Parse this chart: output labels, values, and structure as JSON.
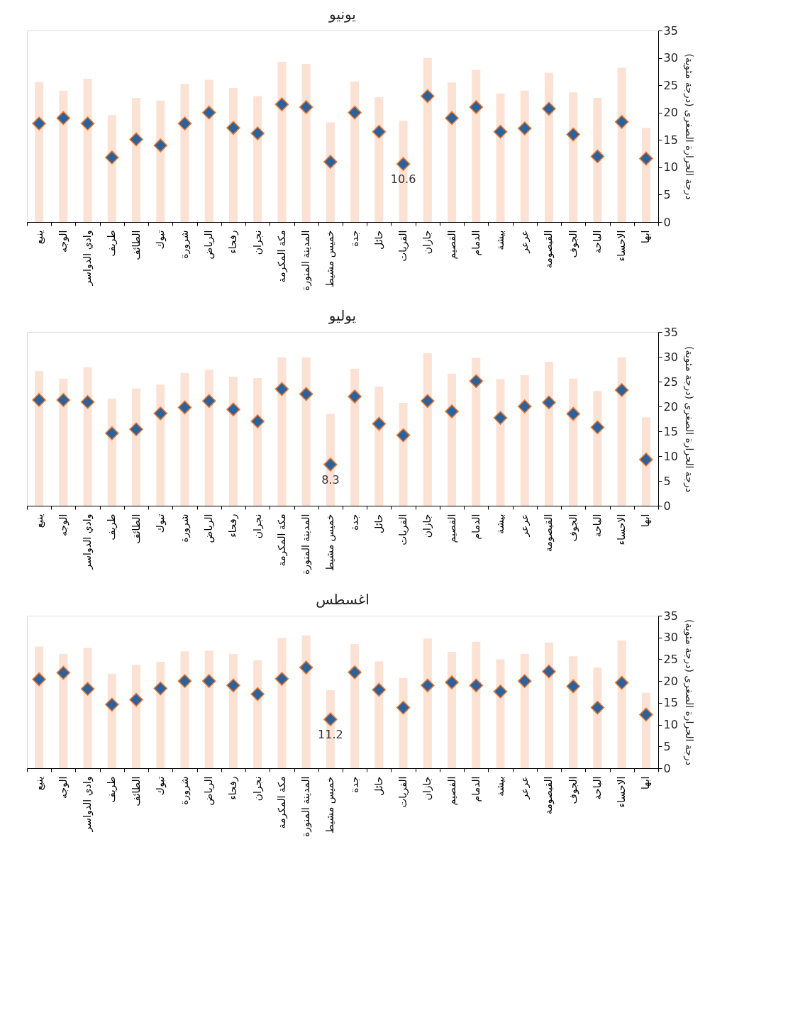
{
  "chart_data": [
    {
      "type": "bar",
      "title": "يونيو",
      "ylabel": "درجة الحرارة الصغرى (درجة مئوية)",
      "ylim": [
        0,
        35
      ],
      "yticks": [
        0,
        5,
        10,
        15,
        20,
        25,
        30,
        35
      ],
      "grid": false,
      "legend": false,
      "categories": [
        "ينبع",
        "الوجه",
        "وادي الدواسر",
        "طريف",
        "الطائف",
        "تبوك",
        "شرورة",
        "الرياض",
        "رفحاء",
        "نجران",
        "مكة المكرمة",
        "المدينة المنورة",
        "خميس مشيط",
        "جدة",
        "حائل",
        "القريات",
        "جازان",
        "القصيم",
        "الدمام",
        "بيشة",
        "عرعر",
        "القيصومة",
        "الجوف",
        "الباحة",
        "الاحساء",
        "ابها"
      ],
      "series": [
        {
          "type": "bar",
          "color": "#fbe2d5",
          "values": [
            25.6,
            24.0,
            26.2,
            19.5,
            22.7,
            22.2,
            25.2,
            26.0,
            24.5,
            23.0,
            29.3,
            28.9,
            18.2,
            25.7,
            22.8,
            18.5,
            30.0,
            25.5,
            27.8,
            23.5,
            24.0,
            27.3,
            23.7,
            22.7,
            28.2,
            17.2
          ]
        },
        {
          "type": "scatter",
          "color": "#2e6199",
          "marker": "diamond",
          "values": [
            18.0,
            19.0,
            18.0,
            11.8,
            15.1,
            14.0,
            18.0,
            20.0,
            17.2,
            16.2,
            21.5,
            21.0,
            11.0,
            20.0,
            16.5,
            10.6,
            23.0,
            19.0,
            21.0,
            16.5,
            17.1,
            20.7,
            16.0,
            12.0,
            18.3,
            11.6
          ],
          "value_labels": [
            null,
            null,
            null,
            null,
            null,
            null,
            null,
            null,
            null,
            null,
            null,
            null,
            null,
            null,
            null,
            "10.6",
            null,
            null,
            null,
            null,
            null,
            null,
            null,
            null,
            null,
            null
          ]
        }
      ]
    },
    {
      "type": "bar",
      "title": "يوليو",
      "ylabel": "درجة الحرارة الصغرى (درجة مئوية)",
      "ylim": [
        0,
        35
      ],
      "yticks": [
        0,
        5,
        10,
        15,
        20,
        25,
        30,
        35
      ],
      "grid": false,
      "legend": false,
      "categories": [
        "ينبع",
        "الوجه",
        "وادي الدواسر",
        "طريف",
        "الطائف",
        "تبوك",
        "شرورة",
        "الرياض",
        "رفحاء",
        "نجران",
        "مكة المكرمة",
        "المدينة المنورة",
        "خميس مشيط",
        "جدة",
        "حائل",
        "القريات",
        "جازان",
        "القصيم",
        "الدمام",
        "بيشة",
        "عرعر",
        "القيصومة",
        "الجوف",
        "الباحة",
        "الاحساء",
        "ابها"
      ],
      "series": [
        {
          "type": "bar",
          "color": "#fbe2d5",
          "values": [
            27.1,
            25.6,
            27.9,
            21.6,
            23.6,
            24.4,
            26.7,
            27.4,
            26.0,
            25.7,
            29.9,
            29.9,
            18.5,
            27.6,
            24.0,
            20.7,
            30.7,
            26.6,
            29.8,
            25.5,
            26.3,
            29.0,
            25.6,
            23.1,
            29.9,
            17.8
          ]
        },
        {
          "type": "scatter",
          "color": "#2e6199",
          "marker": "diamond",
          "values": [
            21.3,
            21.3,
            20.9,
            14.6,
            15.4,
            18.6,
            19.8,
            21.1,
            19.4,
            17.0,
            23.5,
            22.5,
            8.3,
            22.0,
            16.5,
            14.2,
            21.1,
            19.0,
            25.1,
            17.7,
            20.0,
            20.8,
            18.5,
            15.8,
            23.3,
            9.3
          ],
          "value_labels": [
            null,
            null,
            null,
            null,
            null,
            null,
            null,
            null,
            null,
            null,
            null,
            null,
            "8.3",
            null,
            null,
            null,
            null,
            null,
            null,
            null,
            null,
            null,
            null,
            null,
            null,
            null
          ]
        }
      ]
    },
    {
      "type": "bar",
      "title": "اغسطس",
      "ylabel": "درجة الحرارة الصغرى (درجة مئوية)",
      "ylim": [
        0,
        35
      ],
      "yticks": [
        0,
        5,
        10,
        15,
        20,
        25,
        30,
        35
      ],
      "grid": false,
      "legend": false,
      "categories": [
        "ينبع",
        "الوجه",
        "وادي الدواسر",
        "طريف",
        "الطائف",
        "تبوك",
        "شرورة",
        "الرياض",
        "رفحاء",
        "نجران",
        "مكة المكرمة",
        "المدينة المنورة",
        "خميس مشيط",
        "جدة",
        "حائل",
        "القريات",
        "جازان",
        "القصيم",
        "الدمام",
        "بيشة",
        "عرعر",
        "القيصومة",
        "الجوف",
        "الباحة",
        "الاحساء",
        "ابها"
      ],
      "series": [
        {
          "type": "bar",
          "color": "#fbe2d5",
          "values": [
            27.9,
            26.2,
            27.6,
            21.7,
            23.7,
            24.4,
            26.8,
            27.0,
            26.2,
            24.8,
            29.9,
            30.5,
            17.9,
            28.5,
            24.5,
            20.7,
            29.8,
            26.7,
            29.0,
            25.0,
            26.2,
            28.8,
            25.7,
            23.1,
            29.3,
            17.3
          ]
        },
        {
          "type": "scatter",
          "color": "#2e6199",
          "marker": "diamond",
          "values": [
            20.4,
            21.9,
            18.2,
            14.6,
            15.7,
            18.3,
            20.0,
            20.0,
            19.0,
            17.0,
            20.5,
            23.1,
            11.2,
            22.0,
            18.0,
            13.9,
            19.0,
            19.7,
            19.0,
            17.6,
            20.0,
            22.2,
            18.8,
            13.9,
            19.6,
            12.3
          ],
          "value_labels": [
            null,
            null,
            null,
            null,
            null,
            null,
            null,
            null,
            null,
            null,
            null,
            null,
            "11.2",
            null,
            null,
            null,
            null,
            null,
            null,
            null,
            null,
            null,
            null,
            null,
            null,
            null
          ]
        }
      ]
    }
  ]
}
